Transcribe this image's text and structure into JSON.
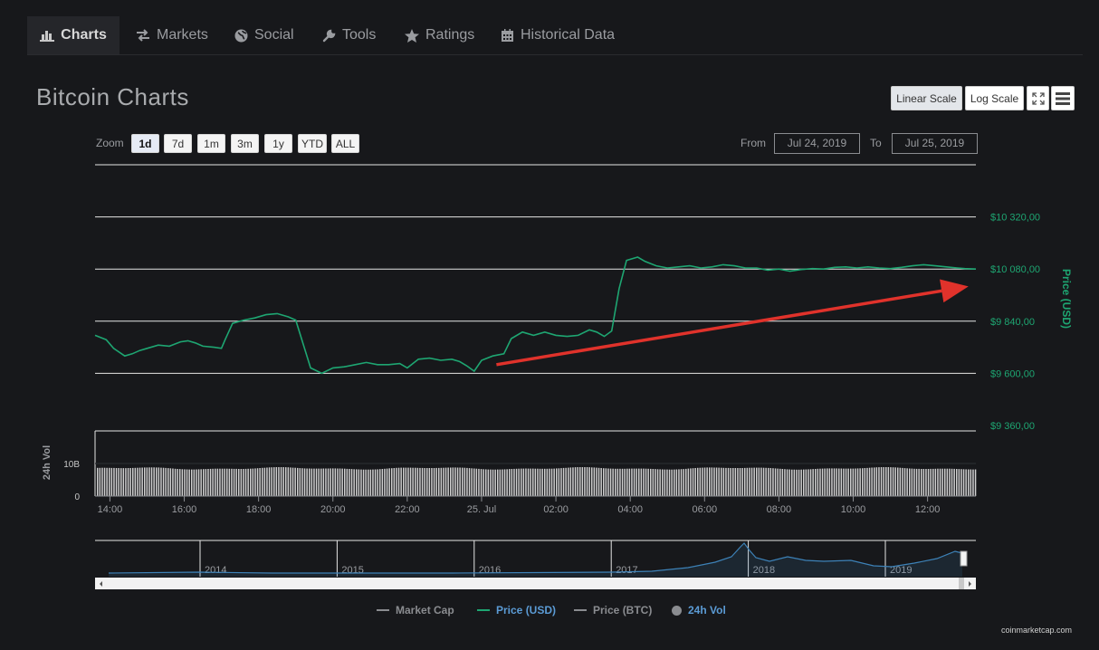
{
  "tabs": [
    {
      "label": "Charts",
      "icon": "bar-chart-icon",
      "active": true
    },
    {
      "label": "Markets",
      "icon": "exchange-icon",
      "active": false
    },
    {
      "label": "Social",
      "icon": "globe-icon",
      "active": false
    },
    {
      "label": "Tools",
      "icon": "wrench-icon",
      "active": false
    },
    {
      "label": "Ratings",
      "icon": "star-icon",
      "active": false
    },
    {
      "label": "Historical Data",
      "icon": "calendar-icon",
      "active": false
    }
  ],
  "page_title": "Bitcoin Charts",
  "toolbar": {
    "linear_label": "Linear Scale",
    "log_label": "Log Scale",
    "fullscreen_icon": "fullscreen-icon",
    "menu_icon": "hamburger-menu-icon"
  },
  "zoom": {
    "label": "Zoom",
    "options": [
      "1d",
      "7d",
      "1m",
      "3m",
      "1y",
      "YTD",
      "ALL"
    ],
    "selected": "1d"
  },
  "range": {
    "from_label": "From",
    "from_value": "Jul 24, 2019",
    "to_label": "To",
    "to_value": "Jul 25, 2019"
  },
  "chart_data": {
    "type": "line",
    "title": "",
    "price_axis": {
      "label": "Price (USD)",
      "ticks": [
        {
          "value": 9360,
          "label": "$9 360,00"
        },
        {
          "value": 9600,
          "label": "$9 600,00"
        },
        {
          "value": 9840,
          "label": "$9 840,00"
        },
        {
          "value": 10080,
          "label": "$10 080,00"
        },
        {
          "value": 10320,
          "label": "$10 320,00"
        }
      ],
      "range": [
        9360,
        10560
      ]
    },
    "volume_axis": {
      "label": "24h Vol",
      "ticks": [
        {
          "value": 0,
          "label": "0"
        },
        {
          "value": 10,
          "label": "10B"
        }
      ],
      "range": [
        0,
        20
      ]
    },
    "x_axis": {
      "range": [
        13.6,
        37.3
      ],
      "ticks": [
        {
          "x": 14,
          "label": "14:00"
        },
        {
          "x": 16,
          "label": "16:00"
        },
        {
          "x": 18,
          "label": "18:00"
        },
        {
          "x": 20,
          "label": "20:00"
        },
        {
          "x": 22,
          "label": "22:00"
        },
        {
          "x": 24,
          "label": "25. Jul"
        },
        {
          "x": 26,
          "label": "02:00"
        },
        {
          "x": 28,
          "label": "04:00"
        },
        {
          "x": 30,
          "label": "06:00"
        },
        {
          "x": 32,
          "label": "08:00"
        },
        {
          "x": 34,
          "label": "10:00"
        },
        {
          "x": 36,
          "label": "12:00"
        }
      ]
    },
    "series": [
      {
        "name": "Price (USD)",
        "color": "#1ea672",
        "points": [
          [
            13.6,
            9775
          ],
          [
            13.9,
            9755
          ],
          [
            14.1,
            9715
          ],
          [
            14.4,
            9680
          ],
          [
            14.6,
            9690
          ],
          [
            14.8,
            9705
          ],
          [
            15.0,
            9715
          ],
          [
            15.3,
            9730
          ],
          [
            15.6,
            9725
          ],
          [
            15.9,
            9745
          ],
          [
            16.1,
            9750
          ],
          [
            16.3,
            9740
          ],
          [
            16.5,
            9725
          ],
          [
            16.8,
            9720
          ],
          [
            17.0,
            9715
          ],
          [
            17.1,
            9755
          ],
          [
            17.3,
            9830
          ],
          [
            17.6,
            9845
          ],
          [
            17.9,
            9855
          ],
          [
            18.2,
            9870
          ],
          [
            18.5,
            9875
          ],
          [
            18.8,
            9860
          ],
          [
            19.0,
            9845
          ],
          [
            19.2,
            9735
          ],
          [
            19.4,
            9625
          ],
          [
            19.7,
            9600
          ],
          [
            20.0,
            9625
          ],
          [
            20.3,
            9630
          ],
          [
            20.6,
            9640
          ],
          [
            20.9,
            9650
          ],
          [
            21.2,
            9640
          ],
          [
            21.5,
            9640
          ],
          [
            21.8,
            9645
          ],
          [
            22.0,
            9625
          ],
          [
            22.3,
            9665
          ],
          [
            22.6,
            9670
          ],
          [
            22.9,
            9660
          ],
          [
            23.2,
            9665
          ],
          [
            23.4,
            9655
          ],
          [
            23.6,
            9635
          ],
          [
            23.8,
            9610
          ],
          [
            24.0,
            9660
          ],
          [
            24.3,
            9680
          ],
          [
            24.6,
            9690
          ],
          [
            24.8,
            9760
          ],
          [
            25.1,
            9790
          ],
          [
            25.4,
            9775
          ],
          [
            25.7,
            9790
          ],
          [
            26.0,
            9775
          ],
          [
            26.3,
            9770
          ],
          [
            26.6,
            9775
          ],
          [
            26.9,
            9800
          ],
          [
            27.1,
            9790
          ],
          [
            27.3,
            9770
          ],
          [
            27.5,
            9795
          ],
          [
            27.7,
            9990
          ],
          [
            27.9,
            10120
          ],
          [
            28.2,
            10135
          ],
          [
            28.4,
            10115
          ],
          [
            28.7,
            10095
          ],
          [
            29.0,
            10085
          ],
          [
            29.3,
            10090
          ],
          [
            29.6,
            10095
          ],
          [
            29.9,
            10085
          ],
          [
            30.2,
            10090
          ],
          [
            30.5,
            10100
          ],
          [
            30.8,
            10095
          ],
          [
            31.1,
            10085
          ],
          [
            31.4,
            10085
          ],
          [
            31.7,
            10075
          ],
          [
            32.0,
            10080
          ],
          [
            32.3,
            10070
          ],
          [
            32.6,
            10078
          ],
          [
            32.9,
            10082
          ],
          [
            33.2,
            10080
          ],
          [
            33.5,
            10088
          ],
          [
            33.8,
            10090
          ],
          [
            34.1,
            10085
          ],
          [
            34.4,
            10090
          ],
          [
            34.7,
            10085
          ],
          [
            35.0,
            10082
          ],
          [
            35.3,
            10088
          ],
          [
            35.6,
            10095
          ],
          [
            35.9,
            10100
          ],
          [
            36.2,
            10095
          ],
          [
            36.5,
            10090
          ],
          [
            36.8,
            10085
          ],
          [
            37.0,
            10082
          ],
          [
            37.3,
            10080
          ]
        ]
      }
    ],
    "volume_level": 8.5,
    "navigator": {
      "labels": [
        "2014",
        "2015",
        "2016",
        "2017",
        "2018",
        "2019"
      ],
      "line_color": "#3d82b8"
    },
    "annotation": {
      "type": "arrow",
      "color": "#e0322b",
      "from": [
        24.4,
        9640
      ],
      "to": [
        37.1,
        10000
      ]
    },
    "legend": [
      {
        "label": "Market Cap",
        "color": "#8a8c90",
        "active": false,
        "marker": "line"
      },
      {
        "label": "Price (USD)",
        "color": "#1ea672",
        "active": true,
        "marker": "line"
      },
      {
        "label": "Price (BTC)",
        "color": "#8a8c90",
        "active": false,
        "marker": "line"
      },
      {
        "label": "24h Vol",
        "color": "#8a8c90",
        "active": true,
        "marker": "circle"
      }
    ]
  },
  "credit": "coinmarketcap.com"
}
